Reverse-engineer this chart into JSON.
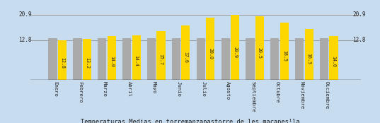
{
  "months": [
    "Enero",
    "Febrero",
    "Marzo",
    "Abril",
    "Mayo",
    "Junio",
    "Julio",
    "Agosto",
    "Septiembre",
    "Octubre",
    "Noviembre",
    "Diciembre"
  ],
  "values": [
    12.8,
    13.2,
    14.0,
    14.4,
    15.7,
    17.6,
    20.0,
    20.9,
    20.5,
    18.5,
    16.3,
    14.0
  ],
  "bar_color_yellow": "#FFD700",
  "bar_color_gray": "#AAAAAA",
  "background_color": "#C8DCF0",
  "grid_color": "#999999",
  "title": "Temperaturas Medias en torremanzanastorre de les macanes¹la",
  "ytick_values": [
    12.8,
    20.9
  ],
  "y_min": 0,
  "y_max": 22.5,
  "gray_bar_height": 13.5,
  "label_fontsize": 5.2,
  "title_fontsize": 6.2,
  "value_fontsize": 4.8,
  "tick_fontsize": 5.5,
  "bar_width": 0.35
}
